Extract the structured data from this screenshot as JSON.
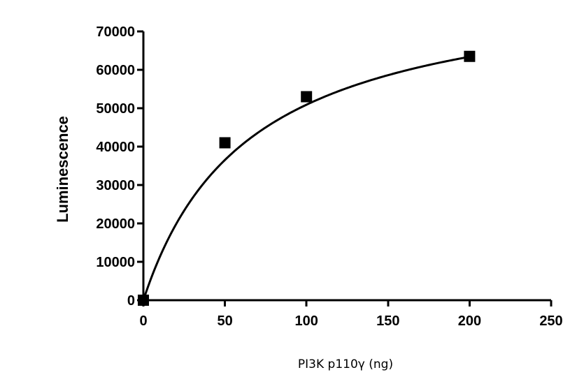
{
  "chart_data": {
    "type": "scatter",
    "title": "",
    "xlabel": "PI3K p110γ (ng)",
    "ylabel": "Luminescence",
    "xlim": [
      0,
      250
    ],
    "ylim": [
      0,
      70000
    ],
    "xticks": [
      "0",
      "50",
      "100",
      "150",
      "200",
      "250"
    ],
    "yticks": [
      "0",
      "10000",
      "20000",
      "30000",
      "40000",
      "50000",
      "60000",
      "70000"
    ],
    "grid": false,
    "legend": "none",
    "series": [
      {
        "points": [
          {
            "x": 0,
            "y": 0
          },
          {
            "x": 50,
            "y": 41000
          },
          {
            "x": 100,
            "y": 53000
          },
          {
            "x": 200,
            "y": 63500
          }
        ],
        "marker": "square",
        "color": "#000000"
      }
    ],
    "fit": {
      "model": "hyperbola",
      "bmax": 84000,
      "kd": 65,
      "xrange": [
        0,
        200
      ],
      "color": "#000000"
    }
  }
}
